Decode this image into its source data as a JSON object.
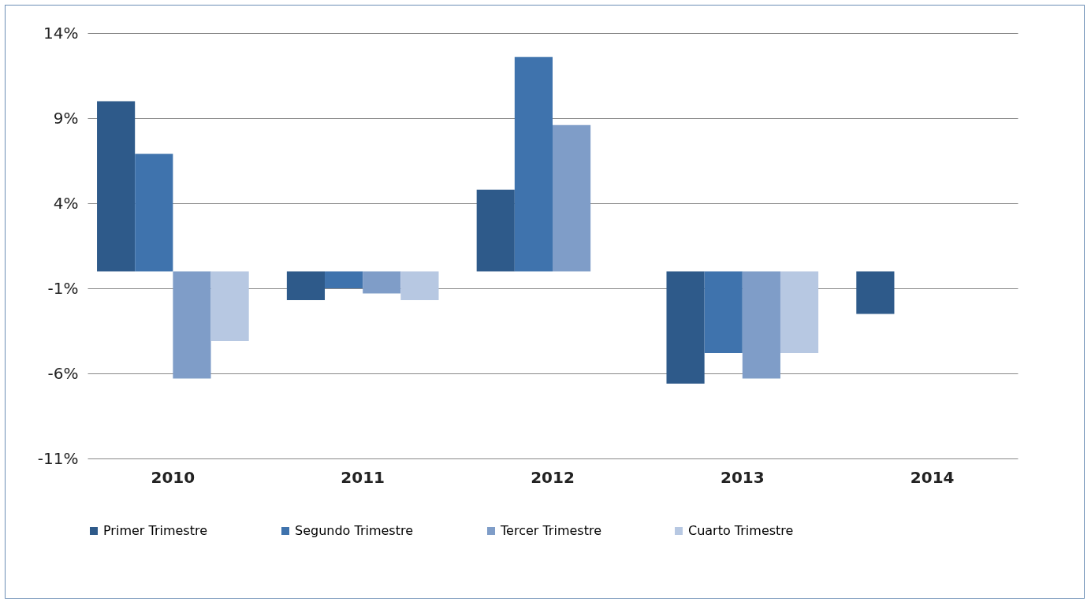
{
  "chart_data": {
    "type": "bar",
    "categories": [
      "2010",
      "2011",
      "2012",
      "2013",
      "2014"
    ],
    "series": [
      {
        "name": "Primer Trimestre",
        "color": "#2e5a8a",
        "values": [
          10.0,
          -1.7,
          4.8,
          -6.6,
          -2.5
        ]
      },
      {
        "name": "Segundo Trimestre",
        "color": "#3f73ad",
        "values": [
          6.9,
          -1.0,
          12.6,
          -4.8,
          null
        ]
      },
      {
        "name": "Tercer Trimestre",
        "color": "#7f9dc8",
        "values": [
          -6.3,
          -1.3,
          8.6,
          -6.3,
          null
        ]
      },
      {
        "name": "Cuarto Trimestre",
        "color": "#b7c8e2",
        "values": [
          -4.1,
          -1.7,
          null,
          -4.8,
          null
        ]
      }
    ],
    "ylim": [
      -11,
      14
    ],
    "yticks": [
      {
        "value": -11,
        "label": "-11%"
      },
      {
        "value": -6,
        "label": "-6%"
      },
      {
        "value": -1,
        "label": "-1%"
      },
      {
        "value": 4,
        "label": "4%"
      },
      {
        "value": 9,
        "label": "9%"
      },
      {
        "value": 14,
        "label": "14%"
      }
    ],
    "grid": "y",
    "legend": "bottom"
  }
}
